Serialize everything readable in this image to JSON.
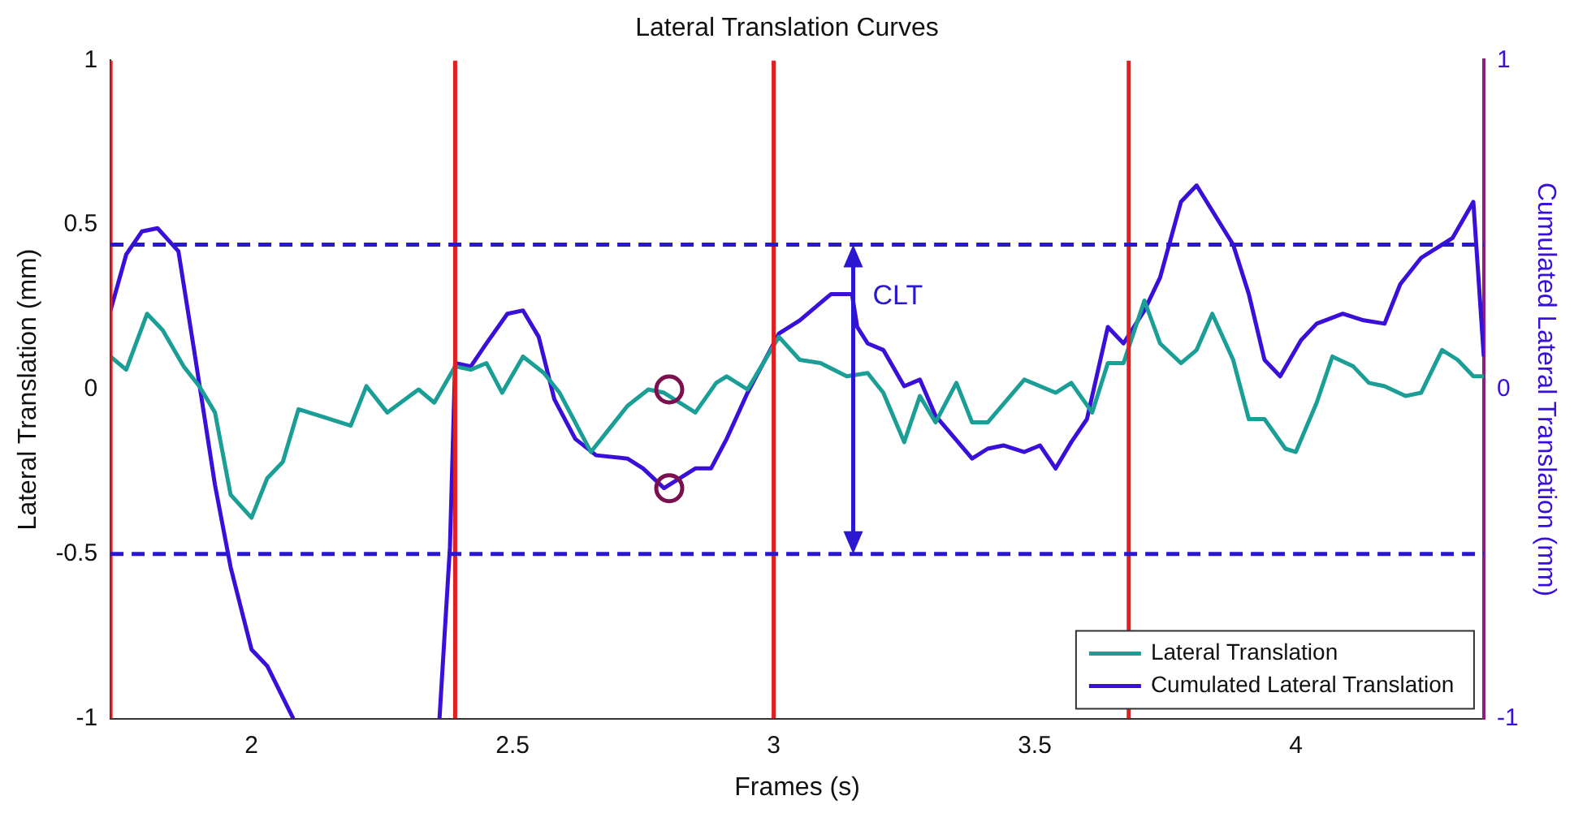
{
  "chart_data": {
    "type": "line",
    "title": "Lateral Translation Curves",
    "xlabel": "Frames (s)",
    "ylabel": "Lateral Translation (mm)",
    "y2label": "Cumulated Lateral Translation (mm)",
    "xlim": [
      1.73,
      4.36
    ],
    "xticks": [
      2,
      2.5,
      3,
      3.5,
      4
    ],
    "ylim": [
      -1,
      1
    ],
    "yticks": [
      -1,
      -0.5,
      0,
      0.5,
      1
    ],
    "y2lim": [
      -1,
      1
    ],
    "y2ticks": [
      -1,
      0,
      1
    ],
    "grid": false,
    "legend": "bottom right",
    "marker": "none",
    "line_style": "solid",
    "ref_lines": [
      {
        "axis": "x",
        "value": 1.73,
        "color": "#e02020",
        "line_style": "solid"
      },
      {
        "axis": "x",
        "value": 2.39,
        "color": "#e02020",
        "line_style": "solid"
      },
      {
        "axis": "x",
        "value": 3.0,
        "color": "#e02020",
        "line_style": "solid"
      },
      {
        "axis": "x",
        "value": 3.68,
        "color": "#e02020",
        "line_style": "solid"
      },
      {
        "axis": "y",
        "value": 0.44,
        "color": "#2a18d0",
        "line_style": "dashed"
      },
      {
        "axis": "y",
        "value": -0.5,
        "color": "#2a18d0",
        "line_style": "dashed"
      }
    ],
    "annotations": [
      "CLT"
    ],
    "series": [
      {
        "name": "Lateral Translation",
        "type": "line",
        "color": "#1a9e96",
        "x": [
          1.73,
          1.76,
          1.8,
          1.83,
          1.87,
          1.9,
          1.93,
          1.96,
          2.0,
          2.03,
          2.06,
          2.09,
          2.13,
          2.19,
          2.22,
          2.26,
          2.32,
          2.35,
          2.39,
          2.42,
          2.45,
          2.48,
          2.52,
          2.56,
          2.59,
          2.65,
          2.69,
          2.72,
          2.76,
          2.79,
          2.85,
          2.89,
          2.91,
          2.95,
          3.01,
          3.05,
          3.09,
          3.14,
          3.18,
          3.21,
          3.25,
          3.28,
          3.31,
          3.35,
          3.38,
          3.41,
          3.48,
          3.54,
          3.57,
          3.61,
          3.64,
          3.67,
          3.71,
          3.74,
          3.78,
          3.81,
          3.84,
          3.88,
          3.91,
          3.94,
          3.98,
          4.0,
          4.04,
          4.07,
          4.11,
          4.14,
          4.17,
          4.21,
          4.24,
          4.28,
          4.31,
          4.34,
          4.36
        ],
        "values": [
          0.1,
          0.06,
          0.23,
          0.18,
          0.07,
          0.01,
          -0.07,
          -0.32,
          -0.39,
          -0.27,
          -0.22,
          -0.06,
          -0.08,
          -0.11,
          0.01,
          -0.07,
          0.0,
          -0.04,
          0.07,
          0.06,
          0.08,
          -0.01,
          0.1,
          0.05,
          -0.01,
          -0.19,
          -0.11,
          -0.05,
          0.0,
          -0.01,
          -0.07,
          0.02,
          0.04,
          0.0,
          0.16,
          0.09,
          0.08,
          0.04,
          0.05,
          -0.01,
          -0.16,
          -0.02,
          -0.1,
          0.02,
          -0.1,
          -0.1,
          0.03,
          -0.01,
          0.02,
          -0.07,
          0.08,
          0.08,
          0.27,
          0.14,
          0.08,
          0.12,
          0.23,
          0.09,
          -0.09,
          -0.09,
          -0.18,
          -0.19,
          -0.04,
          0.1,
          0.07,
          0.02,
          0.01,
          -0.02,
          -0.01,
          0.12,
          0.09,
          0.04,
          0.04
        ]
      },
      {
        "name": "Cumulated Lateral Translation",
        "type": "line",
        "axis": "y2",
        "color": "#3a10d8",
        "x": [
          1.73,
          1.76,
          1.79,
          1.82,
          1.86,
          1.89,
          1.93,
          1.96,
          2.0,
          2.03,
          2.08,
          2.2,
          2.36,
          2.38,
          2.39,
          2.42,
          2.45,
          2.49,
          2.52,
          2.55,
          2.58,
          2.62,
          2.66,
          2.72,
          2.75,
          2.79,
          2.85,
          2.88,
          2.91,
          2.95,
          3.01,
          3.05,
          3.11,
          3.15,
          3.16,
          3.18,
          3.21,
          3.25,
          3.28,
          3.31,
          3.38,
          3.41,
          3.44,
          3.48,
          3.51,
          3.54,
          3.57,
          3.6,
          3.64,
          3.67,
          3.71,
          3.74,
          3.78,
          3.81,
          3.88,
          3.91,
          3.94,
          3.97,
          4.01,
          4.04,
          4.09,
          4.13,
          4.17,
          4.2,
          4.24,
          4.3,
          4.34,
          4.36
        ],
        "values": [
          0.24,
          0.41,
          0.48,
          0.49,
          0.42,
          0.12,
          -0.29,
          -0.54,
          -0.79,
          -0.84,
          -1.0,
          null,
          -1.0,
          -0.48,
          0.08,
          0.07,
          0.14,
          0.23,
          0.24,
          0.16,
          -0.03,
          -0.15,
          -0.2,
          -0.21,
          -0.24,
          -0.3,
          -0.24,
          -0.24,
          -0.15,
          -0.01,
          0.17,
          0.21,
          0.29,
          0.29,
          0.19,
          0.14,
          0.12,
          0.01,
          0.03,
          -0.08,
          -0.21,
          -0.18,
          -0.17,
          -0.19,
          -0.17,
          -0.24,
          -0.16,
          -0.09,
          0.19,
          0.14,
          0.24,
          0.34,
          0.57,
          0.62,
          0.44,
          0.29,
          0.09,
          0.04,
          0.15,
          0.2,
          0.23,
          0.21,
          0.2,
          0.32,
          0.4,
          0.46,
          0.57,
          0.1
        ]
      },
      {
        "type": "scatter",
        "color": "#7a1050",
        "marker": "circle",
        "x": [
          2.8,
          2.8
        ],
        "values": [
          0,
          -0.3
        ]
      }
    ]
  }
}
